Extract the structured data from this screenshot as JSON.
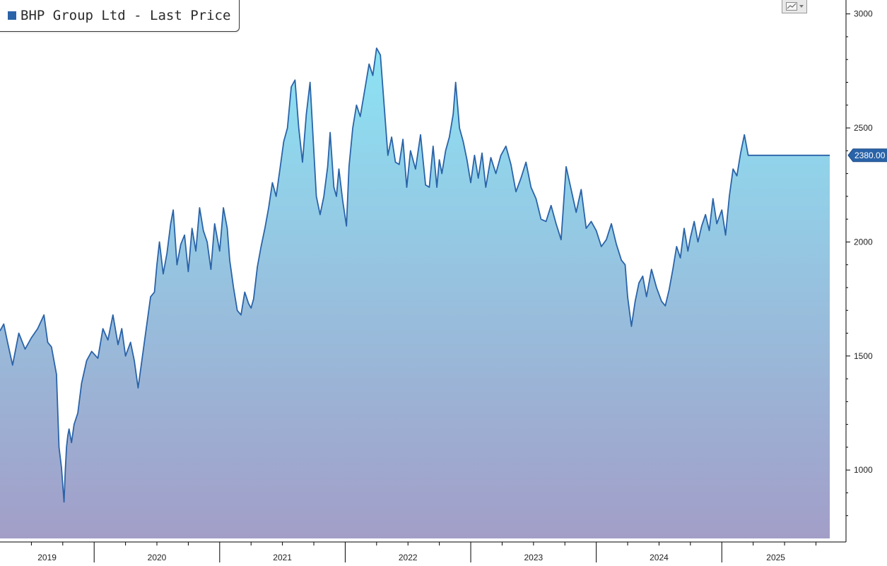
{
  "legend": {
    "label": "BHP Group Ltd - Last Price",
    "color": "#2a63a8"
  },
  "toolbar": {
    "icon": "line-chart-icon"
  },
  "colors": {
    "line": "#2a63a8",
    "fill_top": "#8ce3f4",
    "fill_bottom": "#a29ec8",
    "axis": "#000000",
    "badge": "#2a63a8"
  },
  "chart_data": {
    "type": "area",
    "title": "BHP Group Ltd - Last Price",
    "xlabel": "",
    "ylabel": "",
    "xlim": [
      2019.25,
      2025.86
    ],
    "ylim": [
      700,
      3030
    ],
    "y_ticks": [
      1000,
      1500,
      2000,
      2500,
      3000
    ],
    "x_year_labels": [
      "2019",
      "2020",
      "2021",
      "2022",
      "2023",
      "2024",
      "2025"
    ],
    "grid": false,
    "legend_position": "top-left",
    "last_value": 2380,
    "last_value_label": "2380.00",
    "series": [
      {
        "name": "BHP Group Ltd - Last Price",
        "x": [
          2019.25,
          2019.28,
          2019.31,
          2019.35,
          2019.4,
          2019.45,
          2019.5,
          2019.55,
          2019.6,
          2019.63,
          2019.66,
          2019.7,
          2019.72,
          2019.74,
          2019.76,
          2019.77,
          2019.78,
          2019.79,
          2019.8,
          2019.82,
          2019.84,
          2019.87,
          2019.9,
          2019.94,
          2019.98,
          2020.03,
          2020.07,
          2020.11,
          2020.15,
          2020.19,
          2020.22,
          2020.25,
          2020.29,
          2020.32,
          2020.35,
          2020.38,
          2020.41,
          2020.45,
          2020.48,
          2020.5,
          2020.52,
          2020.55,
          2020.58,
          2020.61,
          2020.63,
          2020.66,
          2020.69,
          2020.72,
          2020.75,
          2020.78,
          2020.81,
          2020.84,
          2020.87,
          2020.9,
          2020.93,
          2020.96,
          2021.0,
          2021.03,
          2021.06,
          2021.08,
          2021.11,
          2021.14,
          2021.17,
          2021.2,
          2021.23,
          2021.25,
          2021.27,
          2021.3,
          2021.33,
          2021.36,
          2021.39,
          2021.42,
          2021.45,
          2021.48,
          2021.51,
          2021.54,
          2021.57,
          2021.6,
          2021.63,
          2021.66,
          2021.69,
          2021.72,
          2021.75,
          2021.77,
          2021.8,
          2021.83,
          2021.86,
          2021.88,
          2021.91,
          2021.93,
          2021.95,
          2021.98,
          2022.01,
          2022.03,
          2022.06,
          2022.09,
          2022.12,
          2022.16,
          2022.19,
          2022.22,
          2022.25,
          2022.28,
          2022.31,
          2022.34,
          2022.37,
          2022.4,
          2022.43,
          2022.46,
          2022.49,
          2022.52,
          2022.56,
          2022.6,
          2022.64,
          2022.67,
          2022.7,
          2022.73,
          2022.75,
          2022.77,
          2022.8,
          2022.83,
          2022.86,
          2022.88,
          2022.91,
          2022.94,
          2022.97,
          2023.0,
          2023.03,
          2023.06,
          2023.09,
          2023.12,
          2023.16,
          2023.2,
          2023.24,
          2023.28,
          2023.32,
          2023.36,
          2023.4,
          2023.44,
          2023.48,
          2023.52,
          2023.56,
          2023.6,
          2023.64,
          2023.68,
          2023.72,
          2023.76,
          2023.8,
          2023.84,
          2023.88,
          2023.92,
          2023.96,
          2024.0,
          2024.04,
          2024.08,
          2024.12,
          2024.16,
          2024.2,
          2024.23,
          2024.25,
          2024.28,
          2024.31,
          2024.34,
          2024.37,
          2024.4,
          2024.44,
          2024.48,
          2024.52,
          2024.55,
          2024.58,
          2024.61,
          2024.64,
          2024.67,
          2024.7,
          2024.73,
          2024.75,
          2024.78,
          2024.81,
          2024.84,
          2024.87,
          2024.9,
          2024.93,
          2024.96,
          2025.0,
          2025.03,
          2025.06,
          2025.09,
          2025.12,
          2025.15,
          2025.18,
          2025.21,
          2025.24,
          2025.27,
          2025.3,
          2025.33,
          2025.36,
          2025.39,
          2025.42,
          2025.45,
          2025.48,
          2025.51,
          2025.54,
          2025.57,
          2025.6,
          2025.63,
          2025.66,
          2025.69,
          2025.72,
          2025.75,
          2025.78,
          2025.81,
          2025.83,
          2025.85,
          2025.86
        ],
        "y": [
          1610,
          1640,
          1560,
          1460,
          1600,
          1530,
          1580,
          1620,
          1680,
          1560,
          1540,
          1420,
          1100,
          1010,
          860,
          1000,
          1100,
          1150,
          1180,
          1120,
          1200,
          1250,
          1380,
          1480,
          1520,
          1490,
          1620,
          1570,
          1680,
          1550,
          1620,
          1500,
          1560,
          1480,
          1360,
          1480,
          1600,
          1760,
          1780,
          1900,
          2000,
          1860,
          1950,
          2080,
          2140,
          1900,
          1990,
          2030,
          1870,
          2060,
          1960,
          2150,
          2050,
          2000,
          1880,
          2080,
          1960,
          2150,
          2060,
          1920,
          1800,
          1700,
          1680,
          1780,
          1730,
          1710,
          1750,
          1890,
          1980,
          2060,
          2150,
          2260,
          2200,
          2320,
          2440,
          2500,
          2680,
          2710,
          2500,
          2350,
          2560,
          2700,
          2400,
          2200,
          2120,
          2200,
          2330,
          2480,
          2240,
          2200,
          2320,
          2180,
          2070,
          2330,
          2500,
          2600,
          2550,
          2680,
          2780,
          2730,
          2850,
          2820,
          2600,
          2380,
          2460,
          2350,
          2340,
          2450,
          2240,
          2400,
          2320,
          2470,
          2250,
          2240,
          2420,
          2240,
          2360,
          2300,
          2400,
          2460,
          2560,
          2700,
          2500,
          2440,
          2360,
          2260,
          2380,
          2280,
          2390,
          2240,
          2370,
          2300,
          2380,
          2420,
          2340,
          2220,
          2280,
          2350,
          2240,
          2190,
          2100,
          2090,
          2160,
          2080,
          2010,
          2330,
          2230,
          2130,
          2230,
          2060,
          2090,
          2050,
          1980,
          2010,
          2080,
          1990,
          1920,
          1900,
          1760,
          1630,
          1740,
          1820,
          1850,
          1760,
          1880,
          1800,
          1740,
          1720,
          1790,
          1880,
          1980,
          1930,
          2060,
          1960,
          2020,
          2090,
          2000,
          2070,
          2120,
          2050,
          2190,
          2080,
          2140,
          2030,
          2200,
          2320,
          2290,
          2390,
          2470,
          2380,
          2380,
          2380,
          2380,
          2380,
          2380,
          2380,
          2380,
          2380,
          2380,
          2380,
          2380,
          2380,
          2380,
          2380,
          2380,
          2380,
          2380,
          2380,
          2380,
          2380,
          2380,
          2380,
          2380
        ]
      }
    ]
  }
}
